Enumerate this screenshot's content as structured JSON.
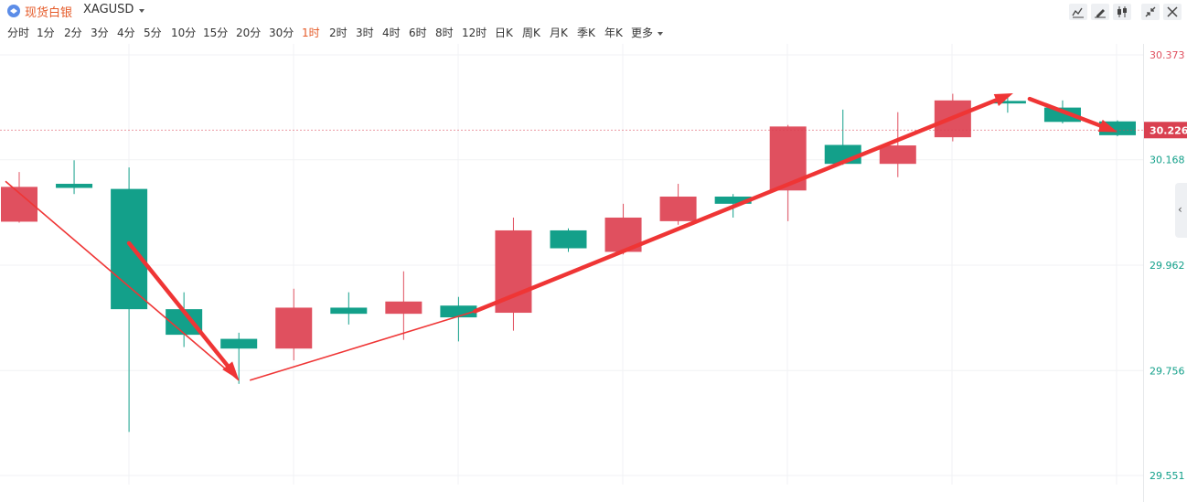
{
  "symbol": {
    "name": "现货白银",
    "code": "XAGUSD",
    "icon": "silver-coin-icon"
  },
  "toolbar": {
    "icons": [
      "line-chart-icon",
      "draw-pen-icon",
      "candlestick-icon",
      "collapse-icon",
      "close-icon"
    ]
  },
  "intervals": {
    "items": [
      "分时",
      "1分",
      "2分",
      "3分",
      "4分",
      "5分",
      "10分",
      "15分",
      "20分",
      "30分",
      "1时",
      "2时",
      "3时",
      "4时",
      "6时",
      "8时",
      "12时",
      "日K",
      "周K",
      "月K",
      "季K",
      "年K",
      "更多"
    ],
    "active": "1时"
  },
  "colors": {
    "up": "#e0505f",
    "down": "#13a08a",
    "price_tag": "#d94050",
    "arrow": "#ef3535"
  },
  "side_tab": {
    "icon": "chevron-left-icon",
    "glyph": "‹"
  },
  "chart_data": {
    "type": "candlestick",
    "ylim": [
      29.551,
      30.373
    ],
    "y_ticks": [
      "30.373",
      "30.168",
      "29.962",
      "29.756",
      "29.551"
    ],
    "last_price": "30.226",
    "last_price_value": 30.226,
    "candles": [
      {
        "open": 30.047,
        "close": 30.115,
        "high": 30.144,
        "low": 30.045
      },
      {
        "open": 30.121,
        "close": 30.113,
        "high": 30.167,
        "low": 30.101
      },
      {
        "open": 30.111,
        "close": 29.876,
        "high": 30.153,
        "low": 29.636
      },
      {
        "open": 29.876,
        "close": 29.826,
        "high": 29.909,
        "low": 29.802
      },
      {
        "open": 29.818,
        "close": 29.799,
        "high": 29.83,
        "low": 29.73
      },
      {
        "open": 29.799,
        "close": 29.879,
        "high": 29.916,
        "low": 29.776
      },
      {
        "open": 29.879,
        "close": 29.867,
        "high": 29.909,
        "low": 29.846
      },
      {
        "open": 29.867,
        "close": 29.891,
        "high": 29.95,
        "low": 29.816
      },
      {
        "open": 29.883,
        "close": 29.86,
        "high": 29.9,
        "low": 29.813
      },
      {
        "open": 29.869,
        "close": 30.03,
        "high": 30.055,
        "low": 29.834
      },
      {
        "open": 30.03,
        "close": 29.995,
        "high": 30.034,
        "low": 29.988
      },
      {
        "open": 29.988,
        "close": 30.055,
        "high": 30.082,
        "low": 29.983
      },
      {
        "open": 30.048,
        "close": 30.096,
        "high": 30.121,
        "low": 30.041
      },
      {
        "open": 30.096,
        "close": 30.082,
        "high": 30.101,
        "low": 30.055
      },
      {
        "open": 30.108,
        "close": 30.233,
        "high": 30.236,
        "low": 30.048
      },
      {
        "open": 30.197,
        "close": 30.16,
        "high": 30.266,
        "low": 30.158
      },
      {
        "open": 30.16,
        "close": 30.196,
        "high": 30.261,
        "low": 30.134
      },
      {
        "open": 30.212,
        "close": 30.284,
        "high": 30.297,
        "low": 30.204
      },
      {
        "open": 30.283,
        "close": 30.278,
        "high": 30.289,
        "low": 30.26
      },
      {
        "open": 30.27,
        "close": 30.242,
        "high": 30.284,
        "low": 30.239
      },
      {
        "open": 30.243,
        "close": 30.216,
        "high": 30.245,
        "low": 30.214
      }
    ],
    "annotations": [
      {
        "kind": "thin-line",
        "from": [
          -0.25,
          30.126
        ],
        "to": [
          4.0,
          29.737
        ]
      },
      {
        "kind": "thick-arrow",
        "from": [
          2.0,
          30.005
        ],
        "to": [
          4.0,
          29.738
        ]
      },
      {
        "kind": "thin-line",
        "from": [
          4.2,
          29.737
        ],
        "to": [
          8.3,
          29.872
        ]
      },
      {
        "kind": "thick-arrow",
        "from": [
          8.3,
          29.872
        ],
        "to": [
          18.1,
          30.298
        ]
      },
      {
        "kind": "thick-arrow",
        "from": [
          18.4,
          30.287
        ],
        "to": [
          20.0,
          30.222
        ]
      }
    ]
  }
}
